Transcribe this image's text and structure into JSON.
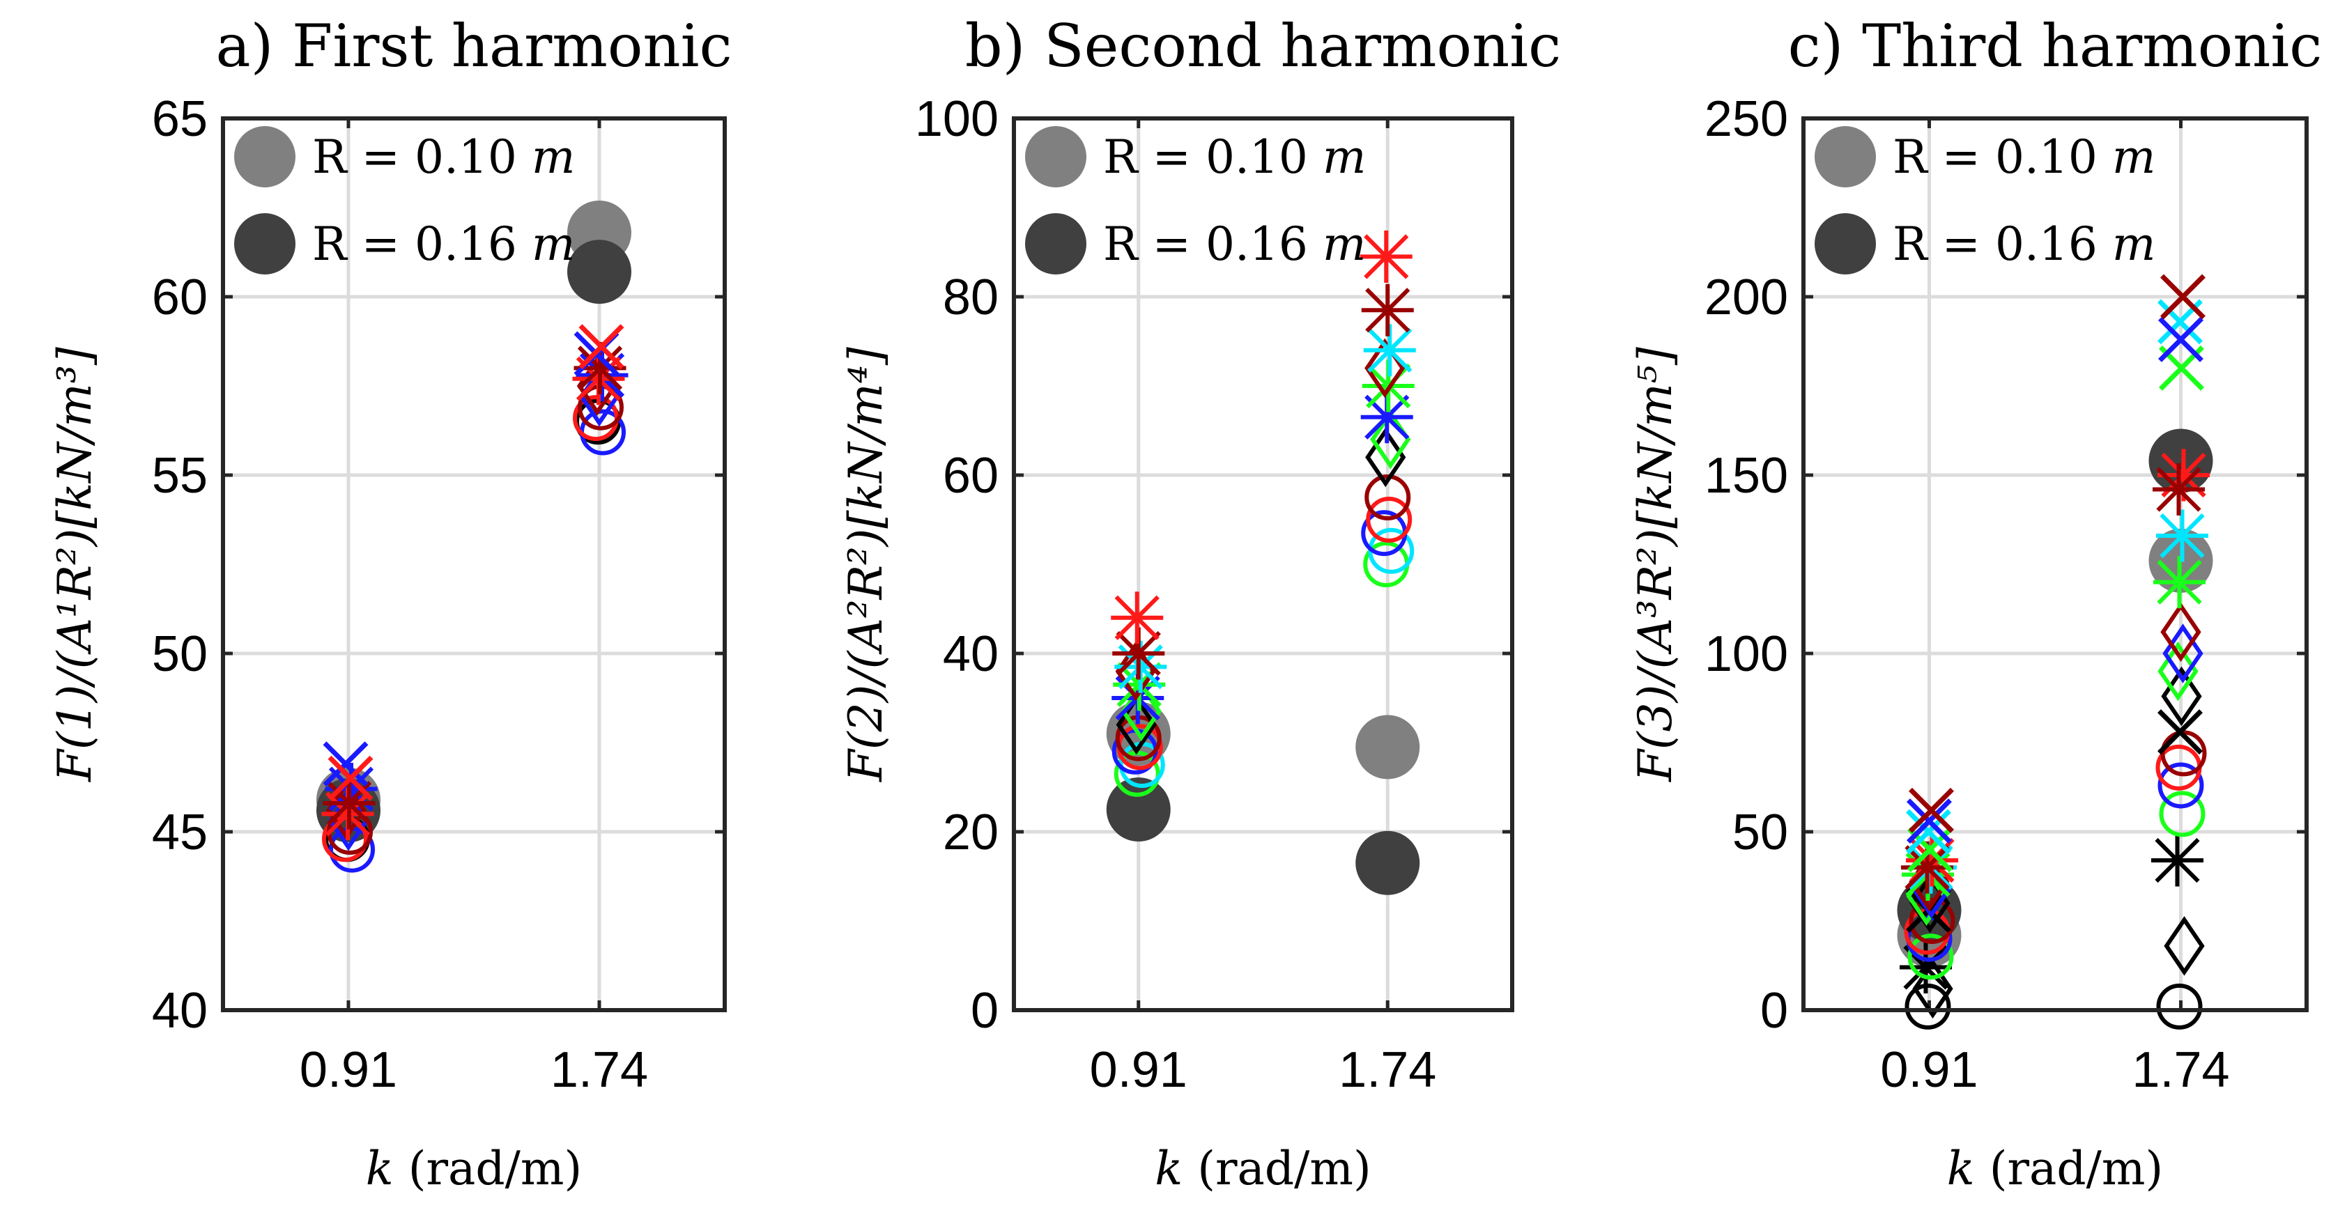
{
  "colors": {
    "black": "#000000",
    "blue": "#1a1aff",
    "cyan": "#00e5ff",
    "green": "#1aff1a",
    "red": "#ff1a1a",
    "darkred": "#990000",
    "gray": "#808080",
    "darkgray": "#404040"
  },
  "chart_data": [
    {
      "type": "scatter",
      "title": "a) First harmonic",
      "ylabel": "F(1)/(A¹R²)[kN/m³]",
      "xlabel_var": "k",
      "xlabel_unit": "(rad/m)",
      "xticks": [
        "0.91",
        "1.74"
      ],
      "ylim": [
        40,
        65
      ],
      "yticks": [
        40,
        45,
        50,
        55,
        60,
        65
      ],
      "legend": [
        "R = 0.10 m",
        "R = 0.16 m"
      ],
      "legend_position": "top-left",
      "series": [
        {
          "name": "R = 0.10 m",
          "color": "gray",
          "marker": "filled",
          "values": [
            45.9,
            61.8
          ]
        },
        {
          "name": "R = 0.16 m",
          "color": "darkgray",
          "marker": "filled",
          "values": [
            45.6,
            60.7
          ]
        },
        {
          "name": "black circles",
          "color": "black",
          "marker": "o",
          "values": [
            44.8,
            56.5
          ]
        },
        {
          "name": "blue circles",
          "color": "blue",
          "marker": "o",
          "values": [
            44.5,
            56.2
          ]
        },
        {
          "name": "red circles",
          "color": "red",
          "marker": "o",
          "values": [
            44.8,
            56.6
          ]
        },
        {
          "name": "dark red circles",
          "color": "darkred",
          "marker": "o",
          "values": [
            45.0,
            56.9
          ]
        },
        {
          "name": "blue diamonds",
          "color": "blue",
          "marker": "d",
          "values": [
            45.3,
            57.2
          ]
        },
        {
          "name": "dark red diamonds",
          "color": "darkred",
          "marker": "d",
          "values": [
            45.6,
            57.5
          ]
        },
        {
          "name": "blue stars",
          "color": "blue",
          "marker": "*",
          "values": [
            46.2,
            57.8
          ]
        },
        {
          "name": "red stars",
          "color": "red",
          "marker": "*",
          "values": [
            45.5,
            57.7
          ]
        },
        {
          "name": "dark red stars",
          "color": "darkred",
          "marker": "*",
          "values": [
            45.8,
            58.0
          ]
        },
        {
          "name": "blue crosses",
          "color": "blue",
          "marker": "x",
          "values": [
            46.9,
            58.4
          ]
        },
        {
          "name": "red crosses",
          "color": "red",
          "marker": "x",
          "values": [
            46.5,
            58.6
          ]
        }
      ]
    },
    {
      "type": "scatter",
      "title": "b) Second harmonic",
      "ylabel": "F(2)/(A²R²)[kN/m⁴]",
      "xlabel_var": "k",
      "xlabel_unit": "(rad/m)",
      "xticks": [
        "0.91",
        "1.74"
      ],
      "ylim": [
        0,
        100
      ],
      "yticks": [
        0,
        20,
        40,
        60,
        80,
        100
      ],
      "legend": [
        "R = 0.10 m",
        "R = 0.16 m"
      ],
      "legend_position": "top-left",
      "series": [
        {
          "name": "R = 0.10 m",
          "color": "gray",
          "marker": "filled",
          "values": [
            31.0,
            29.5
          ]
        },
        {
          "name": "R = 0.16 m",
          "color": "darkgray",
          "marker": "filled",
          "values": [
            22.5,
            16.5
          ]
        },
        {
          "name": "green circles",
          "color": "green",
          "marker": "o",
          "values": [
            26.5,
            50.0
          ]
        },
        {
          "name": "cyan circles",
          "color": "cyan",
          "marker": "o",
          "values": [
            27.5,
            51.5
          ]
        },
        {
          "name": "blue circles",
          "color": "blue",
          "marker": "o",
          "values": [
            29.0,
            53.5
          ]
        },
        {
          "name": "red circles",
          "color": "red",
          "marker": "o",
          "values": [
            29.5,
            55.0
          ]
        },
        {
          "name": "dark red circles",
          "color": "darkred",
          "marker": "o",
          "values": [
            30.5,
            57.5
          ]
        },
        {
          "name": "black diamonds",
          "color": "black",
          "marker": "d",
          "values": [
            32.0,
            62.0
          ]
        },
        {
          "name": "green diamonds",
          "color": "green",
          "marker": "d",
          "values": [
            33.5,
            64.0
          ]
        },
        {
          "name": "blue stars",
          "color": "blue",
          "marker": "*",
          "values": [
            35.0,
            66.5
          ]
        },
        {
          "name": "green stars",
          "color": "green",
          "marker": "*",
          "values": [
            36.5,
            70.0
          ]
        },
        {
          "name": "dark red diamonds",
          "color": "darkred",
          "marker": "d",
          "values": [
            38.0,
            72.0
          ]
        },
        {
          "name": "cyan stars",
          "color": "cyan",
          "marker": "*",
          "values": [
            38.5,
            74.0
          ]
        },
        {
          "name": "dark red stars",
          "color": "darkred",
          "marker": "*",
          "values": [
            40.0,
            78.5
          ]
        },
        {
          "name": "red stars",
          "color": "red",
          "marker": "*",
          "values": [
            44.0,
            84.5
          ]
        }
      ]
    },
    {
      "type": "scatter",
      "title": "c) Third harmonic",
      "ylabel": "F(3)/(A³R²)[kN/m⁵]",
      "xlabel_var": "k",
      "xlabel_unit": "(rad/m)",
      "xticks": [
        "0.91",
        "1.74"
      ],
      "ylim": [
        0,
        250
      ],
      "yticks": [
        0,
        50,
        100,
        150,
        200,
        250
      ],
      "legend": [
        "R = 0.10 m",
        "R = 0.16 m"
      ],
      "legend_position": "top-left",
      "series": [
        {
          "name": "R = 0.10 m",
          "color": "gray",
          "marker": "filled",
          "values": [
            21,
            126
          ]
        },
        {
          "name": "R = 0.16 m",
          "color": "darkgray",
          "marker": "filled",
          "values": [
            28,
            154
          ]
        },
        {
          "name": "black circles",
          "color": "black",
          "marker": "o",
          "values": [
            1,
            1
          ]
        },
        {
          "name": "black diamonds",
          "color": "black",
          "marker": "d",
          "values": [
            6,
            18
          ]
        },
        {
          "name": "black stars",
          "color": "black",
          "marker": "*",
          "values": [
            12,
            42
          ]
        },
        {
          "name": "green circles",
          "color": "green",
          "marker": "o",
          "values": [
            15,
            55
          ]
        },
        {
          "name": "blue circles",
          "color": "blue",
          "marker": "o",
          "values": [
            20,
            63
          ]
        },
        {
          "name": "red circles",
          "color": "red",
          "marker": "o",
          "values": [
            22,
            68
          ]
        },
        {
          "name": "dark red circles",
          "color": "darkred",
          "marker": "o",
          "values": [
            25,
            72
          ]
        },
        {
          "name": "black crosses",
          "color": "black",
          "marker": "x",
          "values": [
            28,
            78
          ]
        },
        {
          "name": "black diamonds (upper)",
          "color": "black",
          "marker": "d",
          "values": [
            30,
            88
          ]
        },
        {
          "name": "green diamonds",
          "color": "green",
          "marker": "d",
          "values": [
            32,
            95
          ]
        },
        {
          "name": "blue diamonds",
          "color": "blue",
          "marker": "d",
          "values": [
            34,
            100
          ]
        },
        {
          "name": "dark red diamonds",
          "color": "darkred",
          "marker": "d",
          "values": [
            36,
            106
          ]
        },
        {
          "name": "green stars",
          "color": "green",
          "marker": "*",
          "values": [
            38,
            120
          ]
        },
        {
          "name": "cyan stars",
          "color": "cyan",
          "marker": "*",
          "values": [
            40,
            133
          ]
        },
        {
          "name": "red stars",
          "color": "red",
          "marker": "*",
          "values": [
            42,
            150
          ]
        },
        {
          "name": "dark red stars",
          "color": "darkred",
          "marker": "*",
          "values": [
            40,
            146
          ]
        },
        {
          "name": "green crosses",
          "color": "green",
          "marker": "x",
          "values": [
            45,
            180
          ]
        },
        {
          "name": "cyan crosses",
          "color": "cyan",
          "marker": "x",
          "values": [
            50,
            193
          ]
        },
        {
          "name": "blue crosses",
          "color": "blue",
          "marker": "x",
          "values": [
            53,
            188
          ]
        },
        {
          "name": "dark red crosses",
          "color": "darkred",
          "marker": "x",
          "values": [
            56,
            200
          ]
        }
      ]
    }
  ]
}
